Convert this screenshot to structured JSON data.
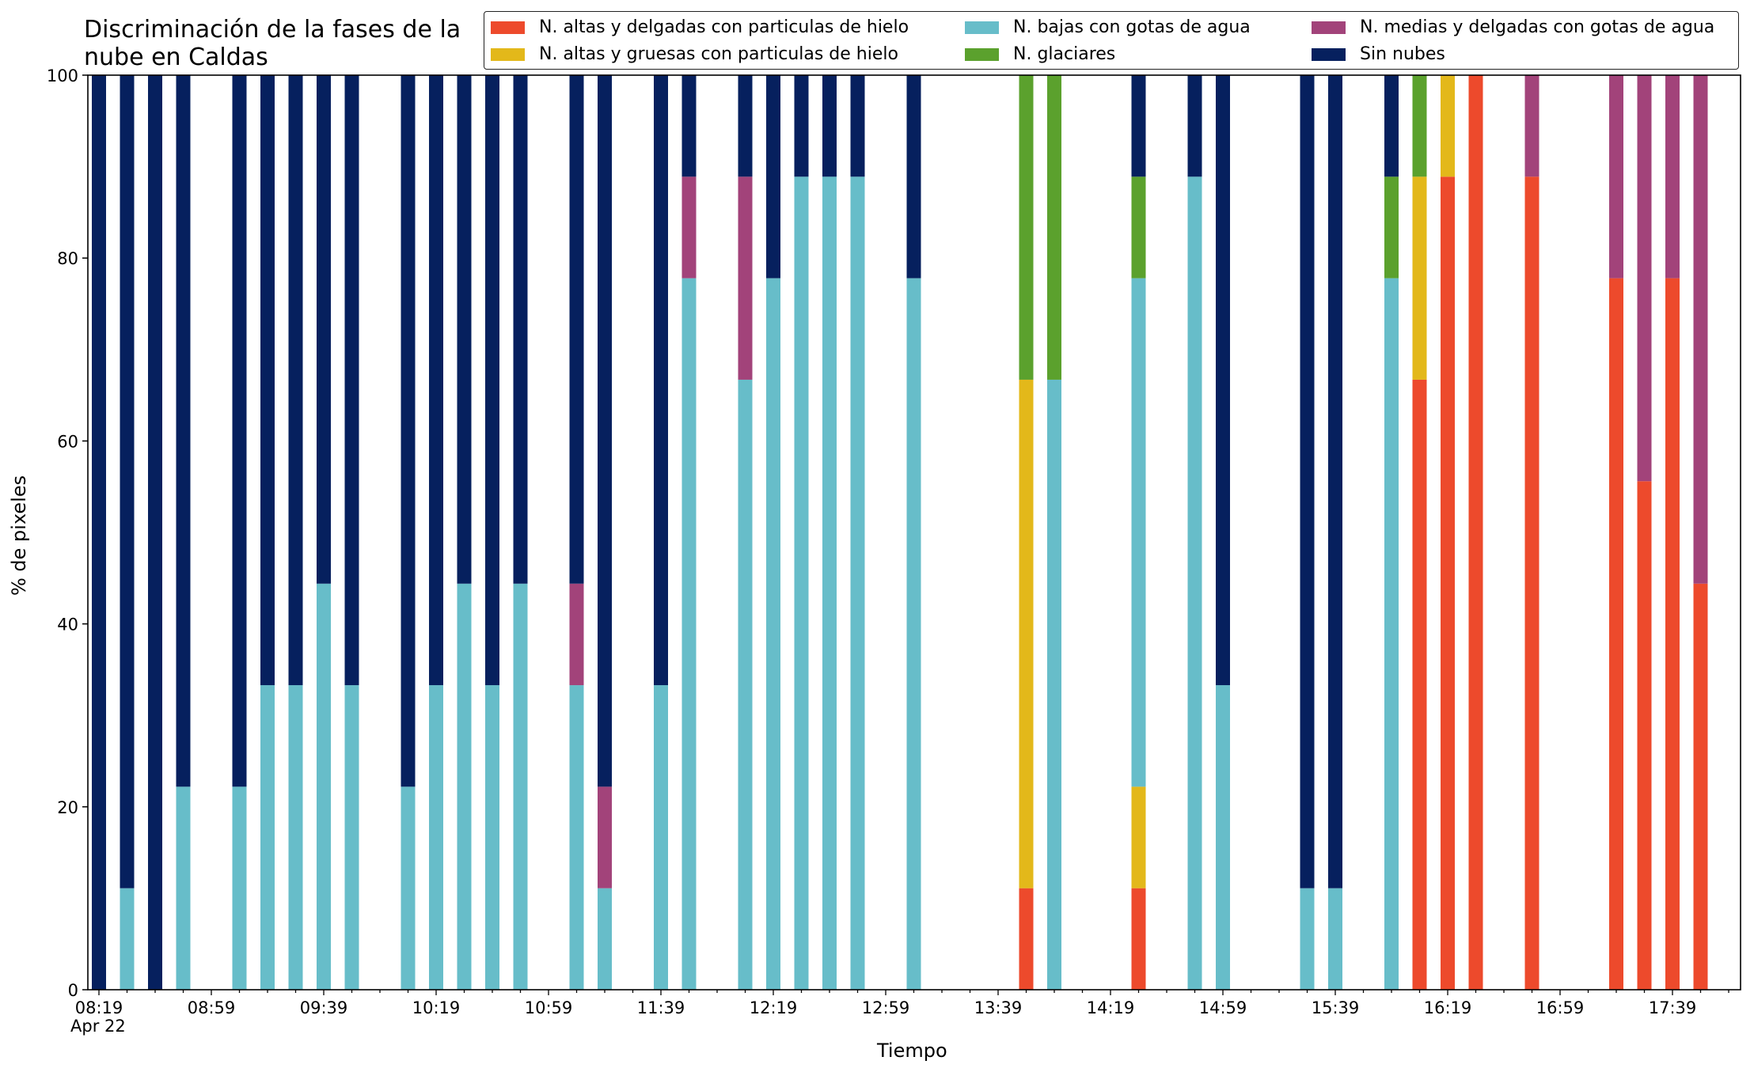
{
  "chart_data": {
    "type": "bar",
    "stacked": true,
    "title": "Discriminación de la fases de la\nnube en Caldas",
    "xlabel": "Tiempo",
    "ylabel": "% de pixeles",
    "ylim": [
      0,
      100
    ],
    "y_ticks": [
      "0",
      "20",
      "40",
      "60",
      "80",
      "100"
    ],
    "x_tick_labels": [
      "08:19",
      "08:59",
      "09:39",
      "10:19",
      "10:59",
      "11:39",
      "12:19",
      "12:59",
      "13:39",
      "14:19",
      "14:59",
      "15:39",
      "16:19",
      "16:59",
      "17:39"
    ],
    "x_date_label": "Apr 22",
    "legend_position": "top-right",
    "grid": false,
    "series": [
      {
        "name": "N. altas y delgadas con particulas de hielo",
        "color": "#ED4A2C",
        "values": [
          0,
          0,
          0,
          0,
          0,
          0,
          0,
          0,
          0,
          0,
          0,
          0,
          0,
          0,
          0,
          0,
          0,
          0,
          0,
          0,
          0,
          0,
          0,
          0,
          0,
          0,
          0,
          0,
          0,
          0,
          0,
          0,
          0,
          11.1,
          0,
          0,
          0,
          11.1,
          0,
          0,
          0,
          0,
          0,
          0,
          0,
          0,
          0,
          66.7,
          88.9,
          100,
          0,
          88.9,
          0,
          0,
          77.8,
          55.6,
          77.8,
          44.4
        ]
      },
      {
        "name": "N. altas y gruesas con particulas de hielo",
        "color": "#E3B81A",
        "values": [
          0,
          0,
          0,
          0,
          0,
          0,
          0,
          0,
          0,
          0,
          0,
          0,
          0,
          0,
          0,
          0,
          0,
          0,
          0,
          0,
          0,
          0,
          0,
          0,
          0,
          0,
          0,
          0,
          0,
          0,
          0,
          0,
          0,
          55.6,
          0,
          0,
          0,
          11.1,
          0,
          0,
          0,
          0,
          0,
          0,
          0,
          0,
          0,
          22.2,
          11.1,
          0,
          0,
          0,
          0,
          0,
          0,
          0,
          0,
          0
        ]
      },
      {
        "name": "N. bajas con gotas de agua",
        "color": "#67BDC9",
        "values": [
          0,
          11.1,
          0,
          22.2,
          0,
          22.2,
          33.3,
          33.3,
          44.4,
          33.3,
          0,
          22.2,
          33.3,
          44.4,
          33.3,
          44.4,
          0,
          33.3,
          11.1,
          0,
          33.3,
          77.8,
          0,
          66.7,
          77.8,
          88.9,
          88.9,
          88.9,
          0,
          77.8,
          0,
          0,
          0,
          0,
          66.7,
          0,
          0,
          55.6,
          0,
          88.9,
          33.3,
          0,
          0,
          11.1,
          11.1,
          0,
          77.8,
          0,
          0,
          0,
          0,
          0,
          0,
          0,
          0,
          0,
          0,
          0
        ]
      },
      {
        "name": "N. glaciares",
        "color": "#5BA12D",
        "values": [
          0,
          0,
          0,
          0,
          0,
          0,
          0,
          0,
          0,
          0,
          0,
          0,
          0,
          0,
          0,
          0,
          0,
          0,
          0,
          0,
          0,
          0,
          0,
          0,
          0,
          0,
          0,
          0,
          0,
          0,
          0,
          0,
          0,
          33.3,
          33.3,
          0,
          0,
          11.1,
          0,
          0,
          0,
          0,
          0,
          0,
          0,
          0,
          11.1,
          11.1,
          0,
          0,
          0,
          0,
          0,
          0,
          0,
          0,
          0,
          0
        ]
      },
      {
        "name": "N. medias y delgadas con gotas de agua",
        "color": "#A2437A",
        "values": [
          0,
          0,
          0,
          0,
          0,
          0,
          0,
          0,
          0,
          0,
          0,
          0,
          0,
          0,
          0,
          0,
          0,
          11.1,
          11.1,
          0,
          0,
          11.1,
          0,
          22.2,
          0,
          0,
          0,
          0,
          0,
          0,
          0,
          0,
          0,
          0,
          0,
          0,
          0,
          0,
          0,
          0,
          0,
          0,
          0,
          0,
          0,
          0,
          0,
          0,
          0,
          0,
          0,
          11.1,
          0,
          0,
          22.2,
          44.4,
          22.2,
          55.6
        ]
      },
      {
        "name": "Sin nubes",
        "color": "#06205E",
        "values": [
          100,
          88.9,
          100,
          77.8,
          0,
          77.8,
          66.7,
          66.7,
          55.6,
          66.7,
          0,
          77.8,
          66.7,
          55.6,
          66.7,
          55.6,
          0,
          55.6,
          77.8,
          0,
          66.7,
          11.1,
          0,
          11.1,
          22.2,
          11.1,
          11.1,
          11.1,
          0,
          22.2,
          0,
          0,
          0,
          0,
          0,
          0,
          0,
          11.1,
          0,
          11.1,
          66.7,
          0,
          0,
          88.9,
          88.9,
          0,
          11.1,
          0,
          0,
          0,
          0,
          0,
          0,
          0,
          0,
          0,
          0,
          0
        ]
      }
    ]
  }
}
